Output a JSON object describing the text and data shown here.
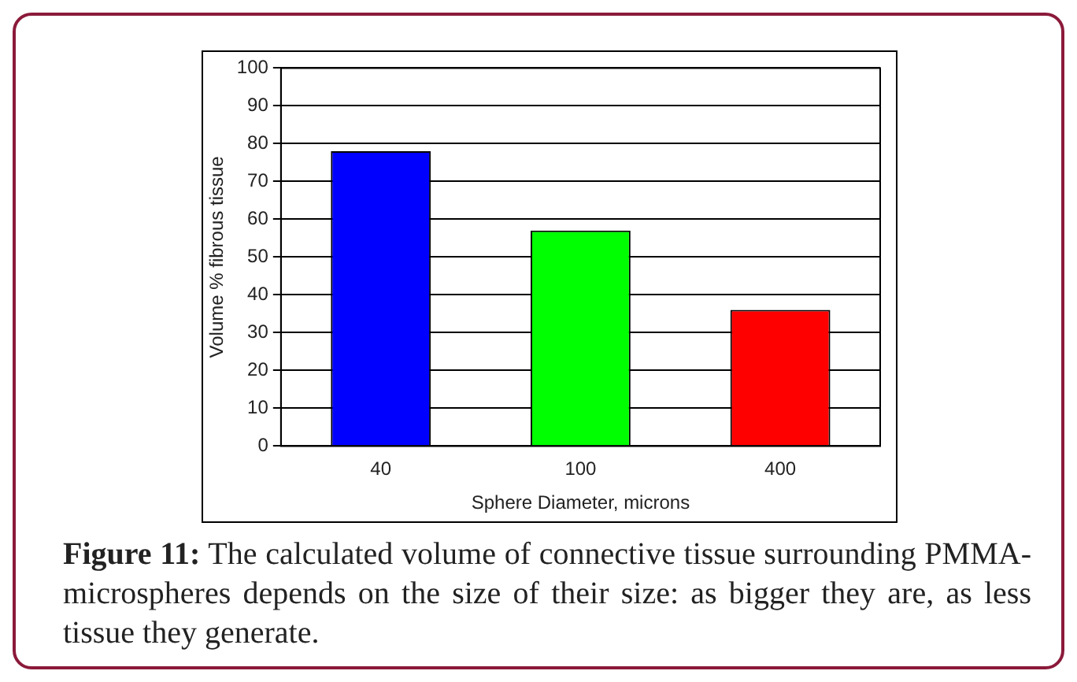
{
  "chart_data": {
    "type": "bar",
    "xlabel": "Sphere Diameter, microns",
    "ylabel": "Volume % fibrous tissue",
    "categories": [
      "40",
      "100",
      "400"
    ],
    "values": [
      78,
      57,
      36
    ],
    "colors": [
      "#0000ff",
      "#00ff00",
      "#ff0000"
    ],
    "ylim": [
      0,
      100
    ],
    "yticks": [
      0,
      10,
      20,
      30,
      40,
      50,
      60,
      70,
      80,
      90,
      100
    ],
    "grid": "y",
    "annotations": [
      "Figure 11: The calculated volume of connective tissue surrounding PMMA-microspheres depends on the size of their size: as bigger they are, as less tissue they generate."
    ]
  }
}
